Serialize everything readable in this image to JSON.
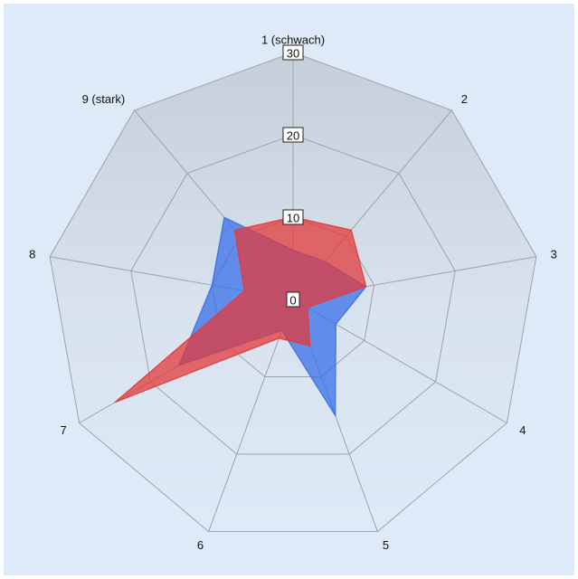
{
  "chart_data": {
    "type": "radar",
    "title": "",
    "axes": [
      "1 (schwach)",
      "2",
      "3",
      "4",
      "5",
      "6",
      "7",
      "8",
      "9 (stark)"
    ],
    "rlim": [
      0,
      30
    ],
    "rticks": [
      "0",
      "10",
      "20",
      "30"
    ],
    "grid": true,
    "series": [
      {
        "color": "#3a6fe8",
        "values": [
          6,
          6,
          9,
          6,
          15,
          4,
          16,
          10,
          13
        ]
      },
      {
        "color": "#e33b3b",
        "values": [
          10,
          11,
          9,
          2,
          6,
          5,
          25,
          6,
          11
        ]
      }
    ]
  }
}
